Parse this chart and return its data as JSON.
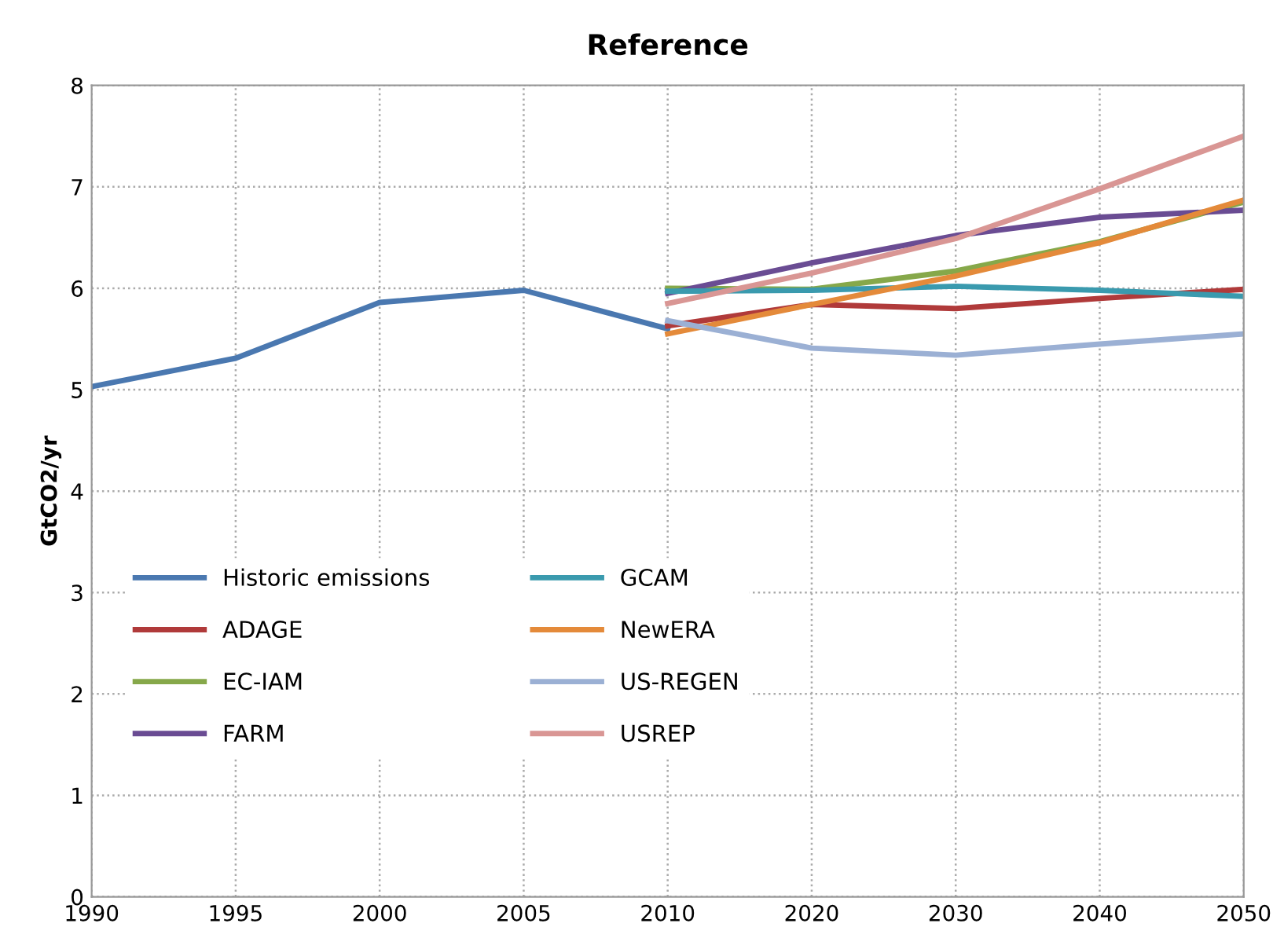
{
  "chart_data": {
    "type": "line",
    "title": "Reference",
    "ylabel": "GtCO2/yr",
    "categories": [
      "1990",
      "1995",
      "2000",
      "2005",
      "2010",
      "2020",
      "2030",
      "2040",
      "2050"
    ],
    "ylim": [
      0,
      8
    ],
    "yticks": [
      0,
      1,
      2,
      3,
      4,
      5,
      6,
      7,
      8
    ],
    "grid": true,
    "legend": "bottom left",
    "marker": "none",
    "line_style": "solid",
    "series": [
      {
        "name": "Historic emissions",
        "color": "#4a78b0",
        "values": [
          5.03,
          5.31,
          5.86,
          5.98,
          5.6,
          null,
          null,
          null,
          null
        ]
      },
      {
        "name": "ADAGE",
        "color": "#b03a3a",
        "values": [
          null,
          null,
          null,
          null,
          5.63,
          5.84,
          5.8,
          5.9,
          5.99
        ]
      },
      {
        "name": "EC-IAM",
        "color": "#86a84a",
        "values": [
          null,
          null,
          null,
          null,
          6.0,
          5.99,
          6.17,
          6.46,
          6.85
        ]
      },
      {
        "name": "FARM",
        "color": "#6a4c93",
        "values": [
          null,
          null,
          null,
          null,
          5.95,
          6.25,
          6.52,
          6.7,
          6.77
        ]
      },
      {
        "name": "GCAM",
        "color": "#3a9aae",
        "values": [
          null,
          null,
          null,
          null,
          5.97,
          5.98,
          6.02,
          5.98,
          5.92
        ]
      },
      {
        "name": "NewERA",
        "color": "#e48a3a",
        "values": [
          null,
          null,
          null,
          null,
          5.55,
          5.84,
          6.12,
          6.45,
          6.87
        ]
      },
      {
        "name": "US-REGEN",
        "color": "#9bb0d4",
        "values": [
          null,
          null,
          null,
          null,
          5.68,
          5.41,
          5.34,
          5.45,
          5.55
        ]
      },
      {
        "name": "USREP",
        "color": "#d99694",
        "values": [
          null,
          null,
          null,
          null,
          5.85,
          6.15,
          6.49,
          6.98,
          7.5
        ]
      }
    ]
  }
}
